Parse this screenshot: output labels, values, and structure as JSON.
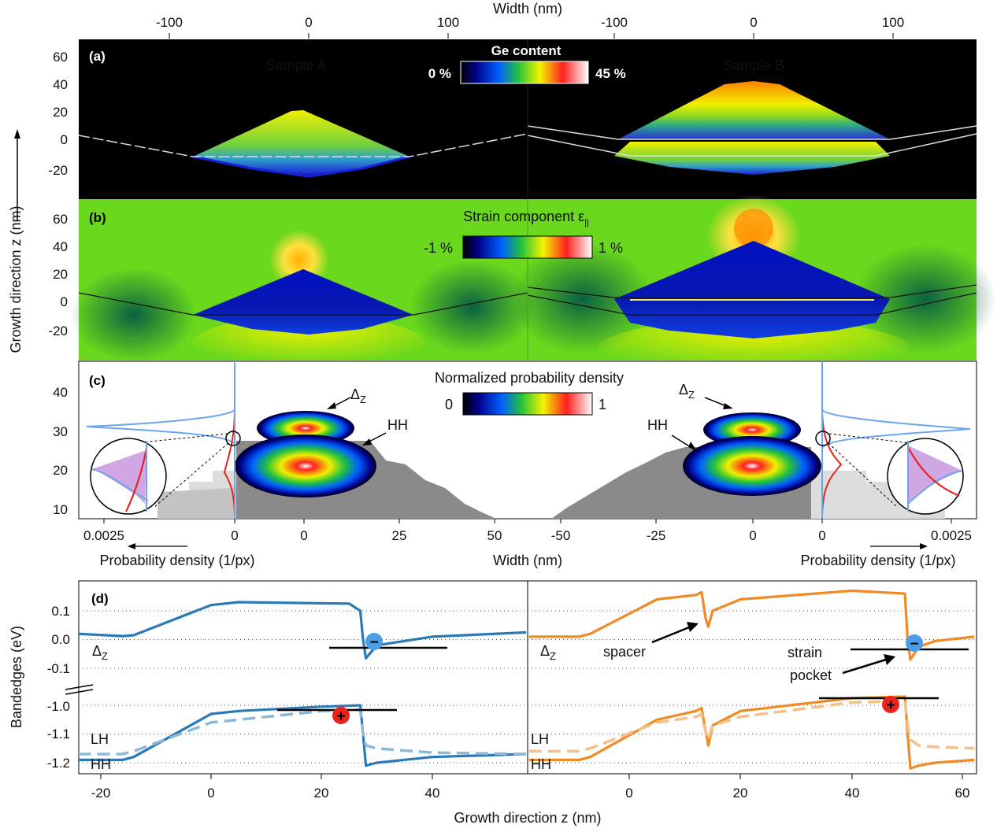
{
  "figure": {
    "top_axis_label": "Width (nm)",
    "top_ticks_a": [
      "-100",
      "0",
      "100"
    ],
    "top_ticks_b": [
      "-100",
      "0",
      "100"
    ],
    "left_axis_label": "Growth direction z (nm)"
  },
  "panel_a": {
    "label": "(a)",
    "sample_a": "Sample A",
    "sample_b": "Sample B",
    "colorbar_title": "Ge content",
    "colorbar_min": "0 %",
    "colorbar_max": "45 %",
    "yticks": [
      "60",
      "40",
      "20",
      "0",
      "-20"
    ]
  },
  "panel_b": {
    "label": "(b)",
    "colorbar_title": "Strain component ε",
    "colorbar_title_sub": "||",
    "colorbar_min": "-1 %",
    "colorbar_max": "1 %",
    "yticks": [
      "60",
      "40",
      "20",
      "0",
      "-20"
    ]
  },
  "panel_c": {
    "label": "(c)",
    "colorbar_title": "Normalized probability density",
    "colorbar_min": "0",
    "colorbar_max": "1",
    "yticks": [
      "40",
      "30",
      "20",
      "10"
    ],
    "xticks": [
      "0.0025",
      "0",
      "0",
      "25",
      "50",
      "-50",
      "-25",
      "0",
      "0",
      "0.0025"
    ],
    "xlabel_left": "Probability density (1/px)",
    "xlabel_mid": "Width (nm)",
    "xlabel_right": "Probability density (1/px)",
    "ann_dz_left": "Δ",
    "ann_dz_left_sub": "Z",
    "ann_hh_left": "HH",
    "ann_dz_right": "Δ",
    "ann_dz_right_sub": "Z",
    "ann_hh_right": "HH"
  },
  "panel_d": {
    "label": "(d)",
    "ylabel": "Bandedges (eV)",
    "xlabel": "Growth direction z (nm)",
    "yticks": [
      "0.1",
      "0.0",
      "-0.1",
      "-1.0",
      "-1.1",
      "-1.2"
    ],
    "xticks_left": [
      "-20",
      "0",
      "20",
      "40"
    ],
    "xticks_right": [
      "0",
      "20",
      "40",
      "60"
    ],
    "dz_left": "Δ",
    "dz_left_sub": "Z",
    "lh_left": "LH",
    "hh_left": "HH",
    "dz_right": "Δ",
    "dz_right_sub": "Z",
    "lh_right": "LH",
    "hh_right": "HH",
    "spacer": "spacer",
    "strain": "strain",
    "pocket": "pocket",
    "electron": "−",
    "hole": "+"
  },
  "colors": {
    "sample_a_line": "#2a7ab8",
    "sample_a_dash": "#8db9d8",
    "sample_b_line": "#f08a24",
    "sample_b_dash": "#f6bf88",
    "electron": "#4a9ee8",
    "hole": "#e8231e",
    "prob_curve": "#6ea6ea",
    "prob_curve_red": "#e8231e"
  },
  "chart_data": [
    {
      "type": "heatmap",
      "panel": "(a)",
      "title": "Ge content",
      "colorbar_range": [
        "0 %",
        "45 %"
      ],
      "xlabel": "Width (nm)",
      "ylabel": "Growth direction z (nm)",
      "ylim": [
        -30,
        70
      ],
      "samples": [
        "Sample A",
        "Sample B"
      ]
    },
    {
      "type": "heatmap",
      "panel": "(b)",
      "title": "Strain component ε||",
      "colorbar_range": [
        "-1 %",
        "1 %"
      ],
      "ylim": [
        -30,
        70
      ]
    },
    {
      "type": "heatmap",
      "panel": "(c)",
      "title": "Normalized probability density",
      "colorbar_range": [
        "0",
        "1"
      ],
      "xlabel": "Width (nm)",
      "ylim": [
        7,
        47
      ]
    },
    {
      "type": "line",
      "panel": "(d)",
      "xlabel": "Growth direction z (nm)",
      "ylabel": "Bandedges (eV)",
      "xlim_left": [
        -24,
        57
      ],
      "xlim_right": [
        -18,
        62
      ],
      "left": [
        {
          "name": "Δz",
          "x": [
            -24,
            -16,
            -14,
            0,
            5,
            25,
            27,
            27.5,
            28,
            30,
            40,
            57
          ],
          "y": [
            0.02,
            0.012,
            0.015,
            0.12,
            0.13,
            0.125,
            0.1,
            0.0,
            -0.065,
            -0.02,
            0.01,
            0.025
          ]
        },
        {
          "name": "HH",
          "x": [
            -24,
            -16,
            -14,
            0,
            5,
            20,
            27,
            27.5,
            28,
            30,
            40,
            57
          ],
          "y": [
            -1.19,
            -1.19,
            -1.18,
            -1.03,
            -1.02,
            -1.005,
            -1.0,
            -1.1,
            -1.21,
            -1.2,
            -1.18,
            -1.17
          ]
        },
        {
          "name": "LH",
          "x": [
            -24,
            -16,
            -14,
            0,
            5,
            20,
            27,
            27.5,
            28,
            30,
            40,
            57
          ],
          "y": [
            -1.17,
            -1.17,
            -1.16,
            -1.06,
            -1.05,
            -1.02,
            -1.015,
            -1.1,
            -1.14,
            -1.15,
            -1.165,
            -1.17
          ]
        }
      ],
      "right": [
        {
          "name": "Δz",
          "x": [
            -18,
            -9,
            -7,
            5,
            12,
            13,
            13.7,
            14.2,
            15,
            20,
            40,
            49.5,
            50,
            50.5,
            52,
            55,
            62
          ],
          "y": [
            0.01,
            0.01,
            0.02,
            0.14,
            0.155,
            0.165,
            0.075,
            0.045,
            0.1,
            0.14,
            0.17,
            0.16,
            0.0,
            -0.07,
            -0.025,
            -0.005,
            0.01
          ]
        },
        {
          "name": "HH",
          "x": [
            -18,
            -9,
            -7,
            5,
            12,
            13,
            13.7,
            14.2,
            15,
            20,
            40,
            49.5,
            50,
            50.5,
            52,
            55,
            62
          ],
          "y": [
            -1.19,
            -1.19,
            -1.18,
            -1.05,
            -1.02,
            -1.01,
            -1.09,
            -1.14,
            -1.07,
            -1.02,
            -0.975,
            -0.97,
            -1.1,
            -1.22,
            -1.21,
            -1.2,
            -1.19
          ]
        },
        {
          "name": "LH",
          "x": [
            -18,
            -9,
            -7,
            5,
            12,
            13,
            13.7,
            14.2,
            15,
            20,
            40,
            49.5,
            50,
            50.5,
            52,
            55,
            62
          ],
          "y": [
            -1.16,
            -1.16,
            -1.15,
            -1.06,
            -1.04,
            -1.03,
            -1.09,
            -1.12,
            -1.07,
            -1.04,
            -0.99,
            -0.985,
            -1.07,
            -1.12,
            -1.14,
            -1.145,
            -1.15
          ]
        }
      ]
    }
  ]
}
